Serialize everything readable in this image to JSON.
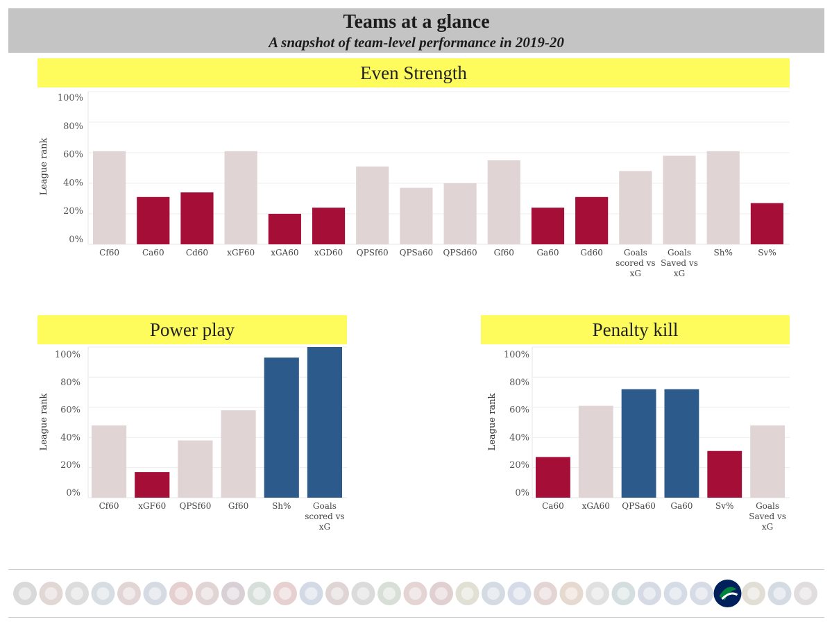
{
  "header": {
    "title": "Teams at a glance",
    "subtitle": "A snapshot of team-level performance in 2019-20"
  },
  "colors": {
    "header_bg": "#c4c4c4",
    "banner_bg": "#fdfc5c",
    "bar_neutral": "#e0d5d4",
    "bar_red": "#a50e36",
    "bar_blue": "#2c5a8a",
    "grid": "#ececec",
    "highlight_team": "#00205b"
  },
  "chart_data": [
    {
      "type": "bar",
      "panel": "Even Strength",
      "ylabel": "League rank",
      "yticks": [
        "0%",
        "20%",
        "40%",
        "60%",
        "80%",
        "100%"
      ],
      "ylim": [
        0,
        100
      ],
      "grid": true,
      "categories": [
        "Cf60",
        "Ca60",
        "Cd60",
        "xGF60",
        "xGA60",
        "xGD60",
        "QPSf60",
        "QPSa60",
        "QPSd60",
        "Gf60",
        "Ga60",
        "Gd60",
        "Goals scored vs xG",
        "Goals Saved vs xG",
        "Sh%",
        "Sv%"
      ],
      "values": [
        61,
        31,
        34,
        61,
        20,
        24,
        51,
        37,
        40,
        55,
        24,
        31,
        48,
        58,
        61,
        27
      ],
      "colors": [
        "neutral",
        "red",
        "red",
        "neutral",
        "red",
        "red",
        "neutral",
        "neutral",
        "neutral",
        "neutral",
        "red",
        "red",
        "neutral",
        "neutral",
        "neutral",
        "red"
      ]
    },
    {
      "type": "bar",
      "panel": "Power play",
      "ylabel": "League rank",
      "yticks": [
        "0%",
        "20%",
        "40%",
        "60%",
        "80%",
        "100%"
      ],
      "ylim": [
        0,
        100
      ],
      "grid": true,
      "categories": [
        "Cf60",
        "xGF60",
        "QPSf60",
        "Gf60",
        "Sh%",
        "Goals scored vs xG"
      ],
      "values": [
        48,
        17,
        38,
        58,
        93,
        100
      ],
      "colors": [
        "neutral",
        "red",
        "neutral",
        "neutral",
        "blue",
        "blue"
      ]
    },
    {
      "type": "bar",
      "panel": "Penalty kill",
      "ylabel": "League rank",
      "yticks": [
        "0%",
        "20%",
        "40%",
        "60%",
        "80%",
        "100%"
      ],
      "ylim": [
        0,
        100
      ],
      "grid": true,
      "categories": [
        "Ca60",
        "xGA60",
        "QPSa60",
        "Ga60",
        "Sv%",
        "Goals Saved vs xG"
      ],
      "values": [
        27,
        61,
        72,
        72,
        31,
        48
      ],
      "colors": [
        "red",
        "neutral",
        "blue",
        "blue",
        "red",
        "neutral"
      ]
    }
  ],
  "logos": {
    "teams": [
      "anaheim-ducks",
      "arizona-coyotes",
      "boston-bruins",
      "buffalo-sabres",
      "carolina-hurricanes",
      "columbus-blue-jackets",
      "calgary-flames",
      "chicago-blackhawks",
      "colorado-avalanche",
      "dallas-stars",
      "detroit-red-wings",
      "edmonton-oilers",
      "florida-panthers",
      "los-angeles-kings",
      "minnesota-wild",
      "montreal-canadiens",
      "new-jersey-devils",
      "nashville-predators",
      "new-york-islanders",
      "new-york-rangers",
      "ottawa-senators",
      "philadelphia-flyers",
      "pittsburgh-penguins",
      "san-jose-sharks",
      "st-louis-blues",
      "tampa-bay-lightning",
      "toronto-maple-leafs",
      "vancouver-canucks",
      "vegas-golden-knights",
      "winnipeg-jets",
      "washington-capitals"
    ],
    "highlighted_index": 27
  }
}
